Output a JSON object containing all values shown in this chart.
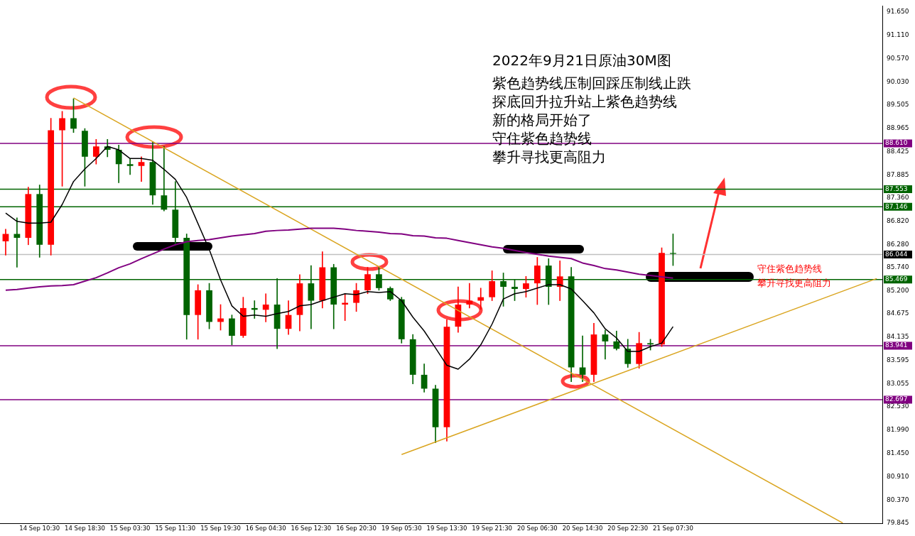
{
  "chart_data": {
    "type": "candlestick",
    "title": "2022年9月21日原油30M图",
    "annotations": [
      "紫色趋势线压制回踩压制线止跌",
      "探底回升拉升站上紫色趋势线",
      "新的格局开始了",
      "守住紫色趋势线",
      "攀升寻找更高阻力",
      "守住紫色趋势线",
      "攀升寻找更高阻力"
    ],
    "categories": [
      null,
      null,
      null,
      "14 Sep 10:30",
      null,
      null,
      null,
      "14 Sep 18:30",
      null,
      null,
      null,
      "15 Sep 03:30",
      null,
      null,
      null,
      "15 Sep 11:30",
      null,
      null,
      null,
      "15 Sep 19:30",
      null,
      null,
      null,
      "16 Sep 04:30",
      null,
      null,
      null,
      "16 Sep 12:30",
      null,
      null,
      null,
      "16 Sep 20:30",
      null,
      null,
      null,
      "19 Sep 05:30",
      null,
      null,
      null,
      "19 Sep 13:30",
      null,
      null,
      null,
      "19 Sep 21:30",
      null,
      null,
      null,
      "20 Sep 06:30",
      null,
      null,
      null,
      "20 Sep 14:30",
      null,
      null,
      null,
      "20 Sep 22:30",
      null,
      null,
      null,
      "21 Sep 07:30",
      null,
      null,
      null,
      null,
      null,
      null,
      null,
      null,
      null,
      null,
      null,
      null,
      null,
      null,
      null,
      null,
      null,
      null
    ],
    "ohlc": [
      [
        86.35,
        86.63,
        86.03,
        86.52
      ],
      [
        86.52,
        86.89,
        85.75,
        86.43
      ],
      [
        86.43,
        87.6,
        86.27,
        87.44
      ],
      [
        87.44,
        87.65,
        85.98,
        86.27
      ],
      [
        86.27,
        89.19,
        86.03,
        88.91
      ],
      [
        88.91,
        89.35,
        87.62,
        89.19
      ],
      [
        89.19,
        89.64,
        88.86,
        88.95
      ],
      [
        88.9,
        88.95,
        87.62,
        88.3
      ],
      [
        88.3,
        88.7,
        88.13,
        88.54
      ],
      [
        88.54,
        88.7,
        88.3,
        88.46
      ],
      [
        88.46,
        88.57,
        87.7,
        88.13
      ],
      [
        88.13,
        88.25,
        87.89,
        88.09
      ],
      [
        88.09,
        88.3,
        87.73,
        88.18
      ],
      [
        88.18,
        88.65,
        87.2,
        87.41
      ],
      [
        87.41,
        88.54,
        87.05,
        87.08
      ],
      [
        87.08,
        87.73,
        86.27,
        86.43
      ],
      [
        86.43,
        86.52,
        84.09,
        84.65
      ],
      [
        84.65,
        85.35,
        84.09,
        85.22
      ],
      [
        85.22,
        85.38,
        84.33,
        84.49
      ],
      [
        84.49,
        84.89,
        84.3,
        84.57
      ],
      [
        84.57,
        84.65,
        83.96,
        84.17
      ],
      [
        84.17,
        85.06,
        84.13,
        84.81
      ],
      [
        84.81,
        84.98,
        84.57,
        84.77
      ],
      [
        84.77,
        85.14,
        84.49,
        84.89
      ],
      [
        84.89,
        85.49,
        83.87,
        84.33
      ],
      [
        84.33,
        84.98,
        84.2,
        84.65
      ],
      [
        84.65,
        85.58,
        84.28,
        85.38
      ],
      [
        85.38,
        85.79,
        84.33,
        84.98
      ],
      [
        84.98,
        86.11,
        84.81,
        85.75
      ],
      [
        85.75,
        85.82,
        84.33,
        84.89
      ],
      [
        84.89,
        85.14,
        84.52,
        84.93
      ],
      [
        84.93,
        85.38,
        84.73,
        85.22
      ],
      [
        85.22,
        85.75,
        85.14,
        85.59
      ],
      [
        85.59,
        85.75,
        85.22,
        85.27
      ],
      [
        85.27,
        85.3,
        84.98,
        85.01
      ],
      [
        85.01,
        85.06,
        84.0,
        84.09
      ],
      [
        84.09,
        84.2,
        83.06,
        83.27
      ],
      [
        83.27,
        83.52,
        82.87,
        82.95
      ],
      [
        82.95,
        83.03,
        81.7,
        82.06
      ],
      [
        82.06,
        84.54,
        81.74,
        84.38
      ],
      [
        84.38,
        85.3,
        84.25,
        84.89
      ],
      [
        84.89,
        85.38,
        84.81,
        84.98
      ],
      [
        84.98,
        85.27,
        84.78,
        85.06
      ],
      [
        85.06,
        85.67,
        84.98,
        85.43
      ],
      [
        85.43,
        85.62,
        84.85,
        85.3
      ],
      [
        85.3,
        85.46,
        84.98,
        85.25
      ],
      [
        85.25,
        85.54,
        85.06,
        85.38
      ],
      [
        85.38,
        85.98,
        84.89,
        85.79
      ],
      [
        85.79,
        85.95,
        84.89,
        85.3
      ],
      [
        85.3,
        85.9,
        84.98,
        85.54
      ],
      [
        85.54,
        85.75,
        83.11,
        83.44
      ],
      [
        83.44,
        84.17,
        83.11,
        83.27
      ],
      [
        83.27,
        84.46,
        83.11,
        84.2
      ],
      [
        84.2,
        84.3,
        83.63,
        84.04
      ],
      [
        84.04,
        84.28,
        83.84,
        83.87
      ],
      [
        83.87,
        84.09,
        83.44,
        83.52
      ],
      [
        83.52,
        84.25,
        83.42,
        84.0
      ],
      [
        84.0,
        84.09,
        83.84,
        83.97
      ],
      [
        83.97,
        86.2,
        83.92,
        86.08
      ],
      [
        86.08,
        86.52,
        85.79,
        86.06
      ],
      null,
      null,
      null,
      null,
      null,
      null,
      null,
      null,
      null,
      null,
      null,
      null,
      null,
      null,
      null,
      null,
      null,
      null
    ],
    "colors": [
      "#ff0000",
      "#006400",
      "#ff0000",
      "#006400",
      "#ff0000",
      "#ff0000",
      "#006400",
      "#006400",
      "#ff0000",
      "#006400",
      "#006400",
      "#006400",
      "#ff0000",
      "#006400",
      "#006400",
      "#006400",
      "#006400",
      "#ff0000",
      "#006400",
      "#ff0000",
      "#006400",
      "#ff0000",
      "#006400",
      "#ff0000",
      "#006400",
      "#ff0000",
      "#ff0000",
      "#006400",
      "#ff0000",
      "#006400",
      "#ff0000",
      "#ff0000",
      "#ff0000",
      "#006400",
      "#006400",
      "#006400",
      "#006400",
      "#006400",
      "#006400",
      "#ff0000",
      "#ff0000",
      "#ff0000",
      "#ff0000",
      "#ff0000",
      "#006400",
      "#006400",
      "#ff0000",
      "#ff0000",
      "#006400",
      "#ff0000",
      "#006400",
      "#006400",
      "#ff0000",
      "#006400",
      "#006400",
      "#006400",
      "#ff0000",
      "#006400",
      "#ff0000",
      "#006400",
      null,
      null,
      null,
      null,
      null,
      null,
      null,
      null,
      null,
      null,
      null,
      null,
      null,
      null,
      null,
      null,
      null,
      null
    ],
    "series": [
      {
        "type": "line",
        "color": "#000000",
        "values": [
          87.0,
          86.81,
          86.77,
          86.77,
          86.79,
          87.2,
          87.73,
          88.02,
          88.26,
          88.54,
          88.46,
          88.26,
          88.26,
          88.22,
          88.01,
          87.78,
          87.36,
          86.76,
          86.16,
          85.46,
          84.86,
          84.62,
          84.65,
          84.62,
          84.68,
          84.73,
          84.86,
          84.89,
          84.98,
          85.06,
          85.14,
          85.12,
          85.19,
          85.17,
          85.19,
          84.98,
          84.6,
          84.28,
          83.89,
          83.49,
          83.4,
          83.63,
          83.96,
          84.44,
          85.02,
          85.14,
          85.19,
          85.27,
          85.35,
          85.35,
          85.25,
          84.98,
          84.7,
          84.33,
          84.12,
          83.81,
          83.81,
          83.92,
          84.0,
          84.38,
          null,
          null,
          null,
          null,
          null,
          null,
          null,
          null,
          null,
          null,
          null,
          null,
          null,
          null,
          null,
          null,
          null,
          null
        ]
      },
      {
        "type": "line",
        "color": "#800080",
        "values": [
          85.22,
          85.24,
          85.27,
          85.3,
          85.32,
          85.33,
          85.35,
          85.43,
          85.51,
          85.62,
          85.74,
          85.83,
          85.95,
          86.06,
          86.17,
          86.27,
          86.34,
          86.37,
          86.39,
          86.43,
          86.47,
          86.5,
          86.53,
          86.58,
          86.6,
          86.61,
          86.63,
          86.65,
          86.65,
          86.65,
          86.63,
          86.6,
          86.58,
          86.56,
          86.53,
          86.52,
          86.48,
          86.47,
          86.43,
          86.42,
          86.37,
          86.32,
          86.27,
          86.22,
          86.19,
          86.14,
          86.09,
          86.05,
          86.01,
          85.98,
          85.95,
          85.85,
          85.79,
          85.72,
          85.69,
          85.64,
          85.59,
          85.56,
          85.53,
          85.5,
          null,
          null,
          null,
          null,
          null,
          null,
          null,
          null,
          null,
          null,
          null,
          null,
          null,
          null,
          null,
          null,
          null,
          null
        ]
      },
      {
        "type": "line",
        "color": "#daa520",
        "values": [
          null,
          null,
          null,
          null,
          null,
          null,
          89.66,
          null,
          null,
          null,
          null,
          null,
          null,
          null,
          null,
          null,
          null,
          null,
          null,
          null,
          null,
          null,
          null,
          null,
          null,
          null,
          null,
          null,
          null,
          null,
          null,
          null,
          null,
          null,
          null,
          null,
          null,
          null,
          null,
          null,
          null,
          null,
          null,
          null,
          null,
          null,
          null,
          null,
          null,
          null,
          null,
          null,
          null,
          null,
          null,
          null,
          null,
          null,
          null,
          null,
          null,
          null,
          null,
          null,
          null,
          null,
          null,
          null,
          null,
          null,
          null,
          null,
          null,
          null,
          79.85,
          null,
          null,
          null
        ]
      },
      {
        "type": "line",
        "color": "#daa520",
        "values": [
          null,
          null,
          null,
          null,
          null,
          null,
          null,
          null,
          null,
          null,
          null,
          null,
          null,
          null,
          null,
          null,
          null,
          null,
          null,
          null,
          null,
          null,
          null,
          null,
          null,
          null,
          null,
          null,
          null,
          null,
          null,
          null,
          null,
          null,
          null,
          81.43,
          null,
          null,
          null,
          null,
          null,
          null,
          null,
          null,
          null,
          null,
          null,
          null,
          null,
          null,
          null,
          null,
          null,
          null,
          null,
          null,
          null,
          null,
          null,
          null,
          null,
          null,
          null,
          null,
          null,
          null,
          null,
          null,
          null,
          null,
          null,
          null,
          null,
          null,
          null,
          null,
          null,
          85.49
        ]
      }
    ],
    "ylim": [
      79.845,
      91.78
    ],
    "yticks": [
      {
        "value": 91.65,
        "label": "91.650"
      },
      {
        "value": 91.11,
        "label": "91.110"
      },
      {
        "value": 90.57,
        "label": "90.570"
      },
      {
        "value": 90.03,
        "label": "90.030"
      },
      {
        "value": 89.505,
        "label": "89.505"
      },
      {
        "value": 88.965,
        "label": "88.965"
      },
      {
        "value": 88.425,
        "label": "88.425"
      },
      {
        "value": 87.885,
        "label": "87.885"
      },
      {
        "value": 87.36,
        "label": "87.360"
      },
      {
        "value": 86.82,
        "label": "86.820"
      },
      {
        "value": 86.28,
        "label": "86.280"
      },
      {
        "value": 85.74,
        "label": "85.740"
      },
      {
        "value": 85.2,
        "label": "85.200"
      },
      {
        "value": 84.675,
        "label": "84.675"
      },
      {
        "value": 84.135,
        "label": "84.135"
      },
      {
        "value": 83.595,
        "label": "83.595"
      },
      {
        "value": 83.055,
        "label": "83.055"
      },
      {
        "value": 82.53,
        "label": "82.530"
      },
      {
        "value": 81.99,
        "label": "81.990"
      },
      {
        "value": 81.45,
        "label": "81.450"
      },
      {
        "value": 80.91,
        "label": "80.910"
      },
      {
        "value": 80.37,
        "label": "80.370"
      },
      {
        "value": 79.845,
        "label": "79.845"
      }
    ],
    "ref_lines": [
      {
        "axis": "y",
        "value": 88.61,
        "label": "88.610",
        "color": "#800080"
      },
      {
        "axis": "y",
        "value": 87.553,
        "label": "87.553",
        "color": "#006400"
      },
      {
        "axis": "y",
        "value": 87.146,
        "label": "87.146",
        "color": "#006400"
      },
      {
        "axis": "y",
        "value": 86.044,
        "label": "86.044",
        "color": "#c0c0c0"
      },
      {
        "axis": "y",
        "value": 85.469,
        "label": "85.469",
        "color": "#006400"
      },
      {
        "axis": "y",
        "value": 83.941,
        "label": "83.941",
        "color": "#800080"
      },
      {
        "axis": "y",
        "value": 82.697,
        "label": "82.697",
        "color": "#800080"
      }
    ]
  }
}
